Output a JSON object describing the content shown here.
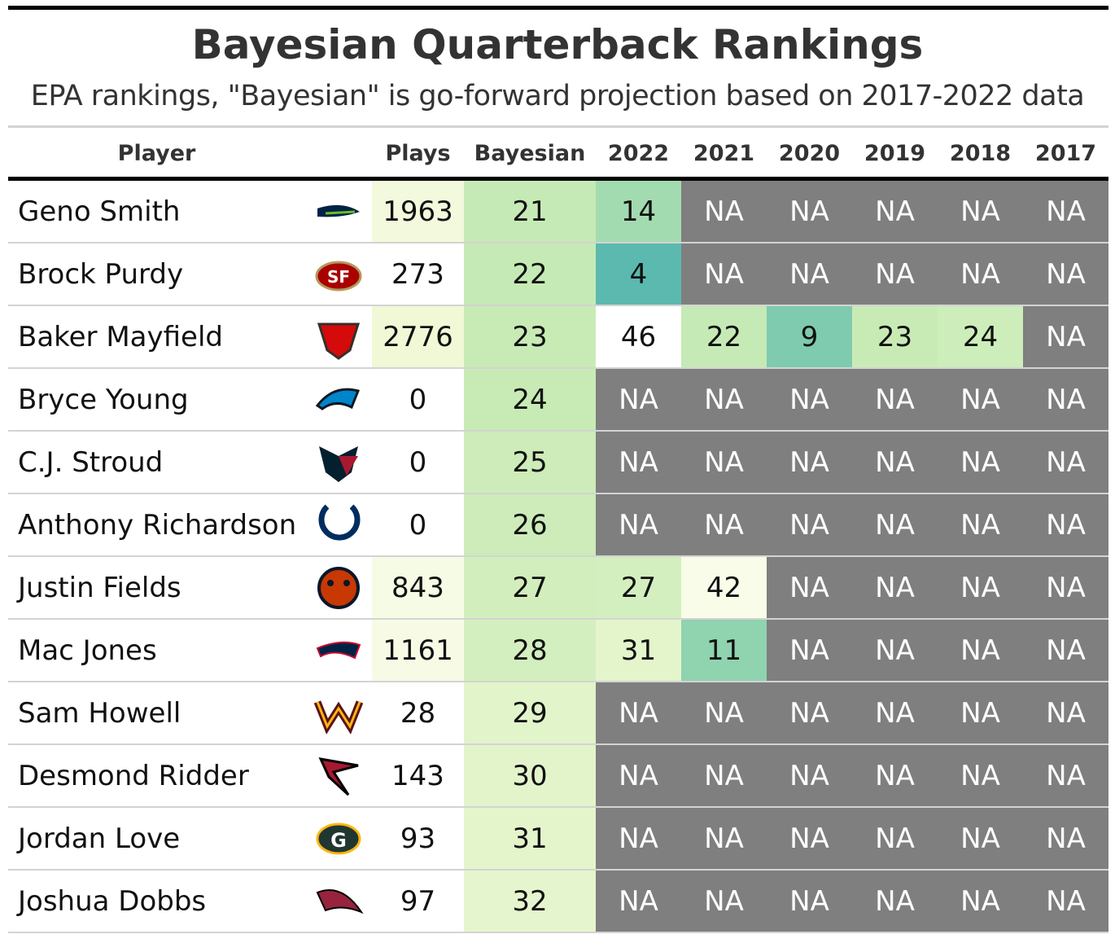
{
  "header": {
    "title": "Bayesian Quarterback Rankings",
    "subtitle": "EPA rankings, \"Bayesian\" is go-forward projection based on 2017-2022 data"
  },
  "table": {
    "columns": [
      "Player",
      "Plays",
      "Bayesian",
      "2022",
      "2021",
      "2020",
      "2019",
      "2018",
      "2017"
    ],
    "rows": [
      [
        "Geno Smith",
        1963,
        21,
        14,
        "NA",
        "NA",
        "NA",
        "NA",
        "NA"
      ],
      [
        "Brock Purdy",
        273,
        22,
        4,
        "NA",
        "NA",
        "NA",
        "NA",
        "NA"
      ],
      [
        "Baker Mayfield",
        2776,
        23,
        46,
        22,
        9,
        23,
        24,
        "NA"
      ],
      [
        "Bryce Young",
        0,
        24,
        "NA",
        "NA",
        "NA",
        "NA",
        "NA",
        "NA"
      ],
      [
        "C.J. Stroud",
        0,
        25,
        "NA",
        "NA",
        "NA",
        "NA",
        "NA",
        "NA"
      ],
      [
        "Anthony Richardson",
        0,
        26,
        "NA",
        "NA",
        "NA",
        "NA",
        "NA",
        "NA"
      ],
      [
        "Justin Fields",
        843,
        27,
        27,
        42,
        "NA",
        "NA",
        "NA",
        "NA"
      ],
      [
        "Mac Jones",
        1161,
        28,
        31,
        11,
        "NA",
        "NA",
        "NA",
        "NA"
      ],
      [
        "Sam Howell",
        28,
        29,
        "NA",
        "NA",
        "NA",
        "NA",
        "NA",
        "NA"
      ],
      [
        "Desmond Ridder",
        143,
        30,
        "NA",
        "NA",
        "NA",
        "NA",
        "NA",
        "NA"
      ],
      [
        "Jordan Love",
        93,
        31,
        "NA",
        "NA",
        "NA",
        "NA",
        "NA",
        "NA"
      ],
      [
        "Joshua Dobbs",
        97,
        32,
        "NA",
        "NA",
        "NA",
        "NA",
        "NA",
        "NA"
      ]
    ],
    "colors": [
      [
        "#f3f9dc",
        "#c6eab5",
        "#a3dbb0",
        "#7f7f7f",
        "#7f7f7f",
        "#7f7f7f",
        "#7f7f7f",
        "#7f7f7f"
      ],
      [
        "#ffffff",
        "#c6eab5",
        "#5bb9af",
        "#7f7f7f",
        "#7f7f7f",
        "#7f7f7f",
        "#7f7f7f",
        "#7f7f7f"
      ],
      [
        "#f0f8d6",
        "#c8ebb6",
        "#ffffff",
        "#c6eab5",
        "#7ecbaf",
        "#c8ebb6",
        "#cdedbb",
        "#7f7f7f"
      ],
      [
        "#ffffff",
        "#c8ebb6",
        "#7f7f7f",
        "#7f7f7f",
        "#7f7f7f",
        "#7f7f7f",
        "#7f7f7f",
        "#7f7f7f"
      ],
      [
        "#ffffff",
        "#cdecb9",
        "#7f7f7f",
        "#7f7f7f",
        "#7f7f7f",
        "#7f7f7f",
        "#7f7f7f",
        "#7f7f7f"
      ],
      [
        "#ffffff",
        "#cdecb9",
        "#7f7f7f",
        "#7f7f7f",
        "#7f7f7f",
        "#7f7f7f",
        "#7f7f7f",
        "#7f7f7f"
      ],
      [
        "#f6fbe6",
        "#d2eebd",
        "#d4efbf",
        "#f8fce9",
        "#7f7f7f",
        "#7f7f7f",
        "#7f7f7f",
        "#7f7f7f"
      ],
      [
        "#f7fbe6",
        "#d4efbf",
        "#e4f5cc",
        "#8fd3af",
        "#7f7f7f",
        "#7f7f7f",
        "#7f7f7f",
        "#7f7f7f"
      ],
      [
        "#ffffff",
        "#e2f4ca",
        "#7f7f7f",
        "#7f7f7f",
        "#7f7f7f",
        "#7f7f7f",
        "#7f7f7f",
        "#7f7f7f"
      ],
      [
        "#ffffff",
        "#e3f4cb",
        "#7f7f7f",
        "#7f7f7f",
        "#7f7f7f",
        "#7f7f7f",
        "#7f7f7f",
        "#7f7f7f"
      ],
      [
        "#ffffff",
        "#e4f5cc",
        "#7f7f7f",
        "#7f7f7f",
        "#7f7f7f",
        "#7f7f7f",
        "#7f7f7f",
        "#7f7f7f"
      ],
      [
        "#ffffff",
        "#e5f5ce",
        "#7f7f7f",
        "#7f7f7f",
        "#7f7f7f",
        "#7f7f7f",
        "#7f7f7f",
        "#7f7f7f"
      ]
    ]
  }
}
